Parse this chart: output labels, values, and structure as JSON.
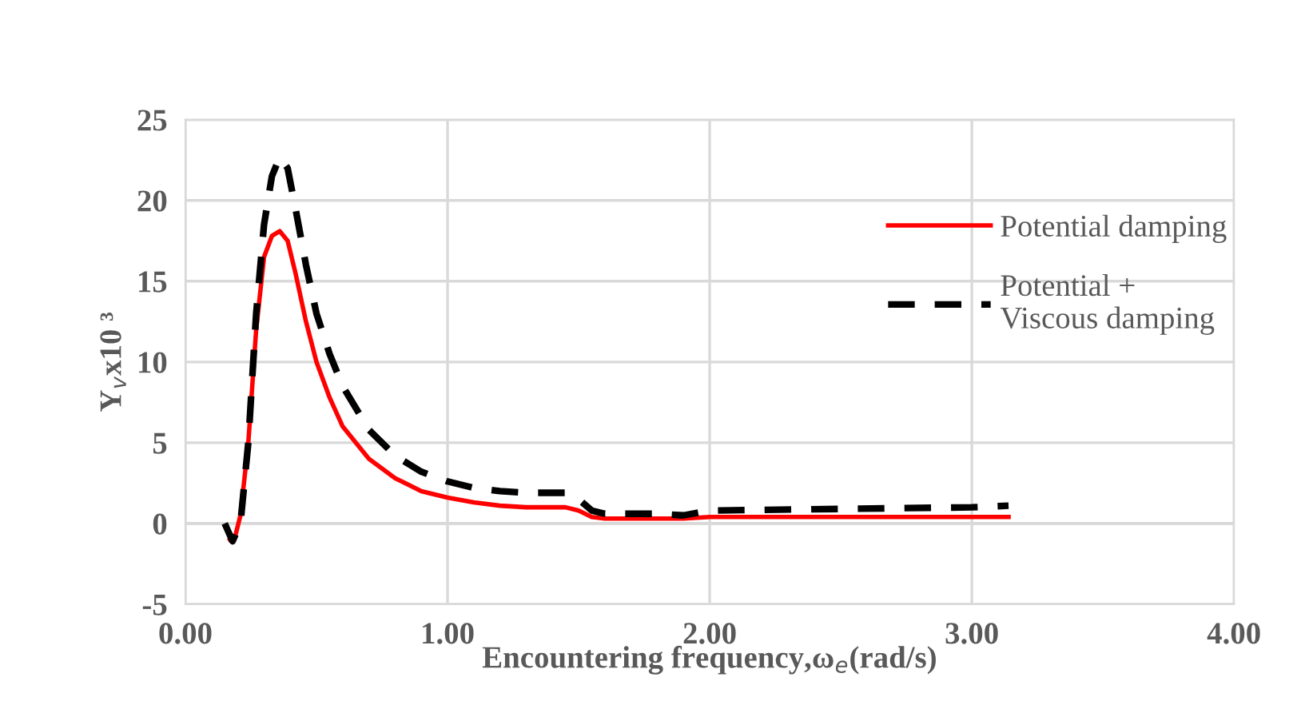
{
  "chart_data": {
    "type": "line",
    "xlabel": "Encountering frequency,ω$_{e}$(rad/s)",
    "ylabel": "Y$_{v}$x10 ³",
    "xlim": [
      0,
      4
    ],
    "xticks": [
      {
        "value": 0,
        "label": "0.00"
      },
      {
        "value": 1,
        "label": "1.00"
      },
      {
        "value": 2,
        "label": "2.00"
      },
      {
        "value": 3,
        "label": "3.00"
      },
      {
        "value": 4,
        "label": "4.00"
      }
    ],
    "ylim": [
      -5,
      25
    ],
    "yticks": [
      -5,
      0,
      5,
      10,
      15,
      20,
      25
    ],
    "grid": true,
    "legend": "right",
    "marker": "none",
    "series": [
      {
        "name": "Potential damping",
        "color": "#ff0000",
        "line_style": "solid",
        "x": [
          0.17,
          0.19,
          0.21,
          0.24,
          0.27,
          0.3,
          0.33,
          0.36,
          0.39,
          0.42,
          0.46,
          0.5,
          0.55,
          0.6,
          0.7,
          0.8,
          0.9,
          1.0,
          1.1,
          1.2,
          1.3,
          1.4,
          1.45,
          1.5,
          1.55,
          1.6,
          1.8,
          1.9,
          2.0,
          2.5,
          3.0,
          3.14
        ],
        "values": [
          -1.0,
          -0.8,
          0.5,
          5,
          12,
          16.5,
          17.8,
          18.1,
          17.5,
          15.5,
          12.5,
          10,
          7.8,
          6,
          4,
          2.8,
          2.0,
          1.6,
          1.3,
          1.1,
          1.0,
          1.0,
          1.0,
          0.8,
          0.4,
          0.3,
          0.3,
          0.3,
          0.4,
          0.4,
          0.4,
          0.4
        ]
      },
      {
        "name": "Potential + Viscous damping",
        "color": "#000000",
        "line_style": "dashed",
        "x": [
          0.15,
          0.18,
          0.21,
          0.24,
          0.27,
          0.3,
          0.33,
          0.36,
          0.39,
          0.42,
          0.46,
          0.5,
          0.55,
          0.6,
          0.7,
          0.8,
          0.9,
          1.0,
          1.1,
          1.2,
          1.3,
          1.4,
          1.45,
          1.5,
          1.55,
          1.6,
          1.8,
          1.9,
          2.0,
          2.5,
          3.0,
          3.14
        ],
        "values": [
          0,
          -1.1,
          0,
          5,
          13,
          18.5,
          21.5,
          22.7,
          22,
          19.5,
          16,
          13,
          10.5,
          8.5,
          5.8,
          4.2,
          3.2,
          2.6,
          2.2,
          2.0,
          1.9,
          1.9,
          1.9,
          1.5,
          0.8,
          0.6,
          0.6,
          0.5,
          0.8,
          0.9,
          1.0,
          1.1
        ]
      }
    ]
  }
}
